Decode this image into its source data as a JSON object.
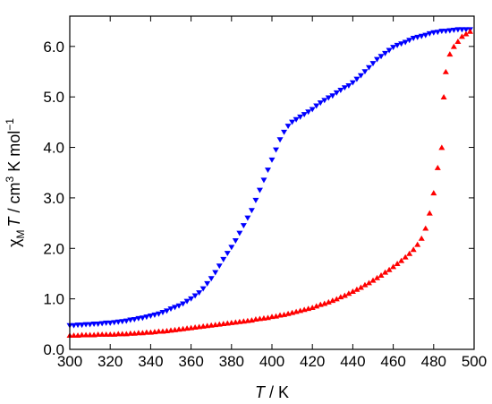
{
  "chart_data": {
    "type": "scatter",
    "xlabel": "T / K",
    "ylabel": "χM T / cm3 K mol−1",
    "xlabel_parts": {
      "var": "T",
      "unit": " / K"
    },
    "ylabel_parts": {
      "chi": "χ",
      "sub": "M",
      "var": "T",
      "unit_a": " / cm",
      "sup3": "3",
      "unit_b": " K mol",
      "sup_neg1": "−1"
    },
    "xlim": [
      300,
      500
    ],
    "ylim": [
      0,
      6.6
    ],
    "x_ticks": [
      300,
      320,
      340,
      360,
      380,
      400,
      420,
      440,
      460,
      480,
      500
    ],
    "x_tick_labels": [
      "300",
      "320",
      "340",
      "360",
      "380",
      "400",
      "420",
      "440",
      "460",
      "480",
      "500"
    ],
    "y_ticks": [
      0,
      1,
      2,
      3,
      4,
      5,
      6
    ],
    "y_tick_labels": [
      "0.0",
      "1.0",
      "2.0",
      "3.0",
      "4.0",
      "5.0",
      "6.0"
    ],
    "grid": false,
    "legend": "none",
    "series": [
      {
        "marker": "triangle-down",
        "color": "#0000ff",
        "points": [
          [
            300,
            0.47
          ],
          [
            302,
            0.47
          ],
          [
            304,
            0.48
          ],
          [
            306,
            0.48
          ],
          [
            308,
            0.49
          ],
          [
            310,
            0.49
          ],
          [
            312,
            0.5
          ],
          [
            314,
            0.5
          ],
          [
            316,
            0.51
          ],
          [
            318,
            0.52
          ],
          [
            320,
            0.52
          ],
          [
            322,
            0.53
          ],
          [
            324,
            0.54
          ],
          [
            326,
            0.55
          ],
          [
            328,
            0.56
          ],
          [
            330,
            0.58
          ],
          [
            332,
            0.59
          ],
          [
            334,
            0.61
          ],
          [
            336,
            0.62
          ],
          [
            338,
            0.64
          ],
          [
            340,
            0.66
          ],
          [
            342,
            0.68
          ],
          [
            344,
            0.7
          ],
          [
            346,
            0.73
          ],
          [
            348,
            0.76
          ],
          [
            350,
            0.8
          ],
          [
            352,
            0.83
          ],
          [
            354,
            0.86
          ],
          [
            356,
            0.9
          ],
          [
            358,
            0.95
          ],
          [
            360,
            1.0
          ],
          [
            362,
            1.06
          ],
          [
            364,
            1.12
          ],
          [
            366,
            1.2
          ],
          [
            368,
            1.3
          ],
          [
            370,
            1.4
          ],
          [
            372,
            1.52
          ],
          [
            374,
            1.65
          ],
          [
            376,
            1.78
          ],
          [
            378,
            1.9
          ],
          [
            380,
            2.02
          ],
          [
            382,
            2.15
          ],
          [
            384,
            2.3
          ],
          [
            386,
            2.45
          ],
          [
            388,
            2.6
          ],
          [
            390,
            2.75
          ],
          [
            392,
            2.95
          ],
          [
            394,
            3.15
          ],
          [
            396,
            3.35
          ],
          [
            398,
            3.55
          ],
          [
            400,
            3.75
          ],
          [
            402,
            3.95
          ],
          [
            404,
            4.15
          ],
          [
            406,
            4.3
          ],
          [
            408,
            4.42
          ],
          [
            410,
            4.5
          ],
          [
            412,
            4.55
          ],
          [
            414,
            4.6
          ],
          [
            416,
            4.65
          ],
          [
            418,
            4.7
          ],
          [
            420,
            4.75
          ],
          [
            422,
            4.82
          ],
          [
            424,
            4.88
          ],
          [
            426,
            4.93
          ],
          [
            428,
            4.98
          ],
          [
            430,
            5.02
          ],
          [
            432,
            5.08
          ],
          [
            434,
            5.13
          ],
          [
            436,
            5.18
          ],
          [
            438,
            5.22
          ],
          [
            440,
            5.28
          ],
          [
            442,
            5.35
          ],
          [
            444,
            5.42
          ],
          [
            446,
            5.5
          ],
          [
            448,
            5.58
          ],
          [
            450,
            5.66
          ],
          [
            452,
            5.74
          ],
          [
            454,
            5.8
          ],
          [
            456,
            5.86
          ],
          [
            458,
            5.92
          ],
          [
            460,
            5.98
          ],
          [
            462,
            6.02
          ],
          [
            464,
            6.05
          ],
          [
            466,
            6.08
          ],
          [
            468,
            6.12
          ],
          [
            470,
            6.16
          ],
          [
            472,
            6.18
          ],
          [
            474,
            6.2
          ],
          [
            476,
            6.22
          ],
          [
            478,
            6.25
          ],
          [
            480,
            6.27
          ],
          [
            482,
            6.28
          ],
          [
            484,
            6.3
          ],
          [
            486,
            6.3
          ],
          [
            488,
            6.31
          ],
          [
            490,
            6.32
          ],
          [
            492,
            6.33
          ],
          [
            494,
            6.33
          ],
          [
            496,
            6.33
          ],
          [
            498,
            6.33
          ]
        ]
      },
      {
        "marker": "triangle-up",
        "color": "#ff0000",
        "points": [
          [
            300,
            0.28
          ],
          [
            302,
            0.28
          ],
          [
            304,
            0.28
          ],
          [
            306,
            0.29
          ],
          [
            308,
            0.29
          ],
          [
            310,
            0.29
          ],
          [
            312,
            0.29
          ],
          [
            314,
            0.3
          ],
          [
            316,
            0.3
          ],
          [
            318,
            0.3
          ],
          [
            320,
            0.3
          ],
          [
            322,
            0.3
          ],
          [
            324,
            0.31
          ],
          [
            326,
            0.31
          ],
          [
            328,
            0.31
          ],
          [
            330,
            0.32
          ],
          [
            332,
            0.32
          ],
          [
            334,
            0.33
          ],
          [
            336,
            0.33
          ],
          [
            338,
            0.34
          ],
          [
            340,
            0.34
          ],
          [
            342,
            0.35
          ],
          [
            344,
            0.36
          ],
          [
            346,
            0.36
          ],
          [
            348,
            0.37
          ],
          [
            350,
            0.38
          ],
          [
            352,
            0.39
          ],
          [
            354,
            0.4
          ],
          [
            356,
            0.41
          ],
          [
            358,
            0.42
          ],
          [
            360,
            0.43
          ],
          [
            362,
            0.44
          ],
          [
            364,
            0.45
          ],
          [
            366,
            0.46
          ],
          [
            368,
            0.47
          ],
          [
            370,
            0.48
          ],
          [
            372,
            0.49
          ],
          [
            374,
            0.5
          ],
          [
            376,
            0.51
          ],
          [
            378,
            0.52
          ],
          [
            380,
            0.53
          ],
          [
            382,
            0.54
          ],
          [
            384,
            0.55
          ],
          [
            386,
            0.56
          ],
          [
            388,
            0.57
          ],
          [
            390,
            0.58
          ],
          [
            392,
            0.6
          ],
          [
            394,
            0.61
          ],
          [
            396,
            0.62
          ],
          [
            398,
            0.63
          ],
          [
            400,
            0.65
          ],
          [
            402,
            0.66
          ],
          [
            404,
            0.68
          ],
          [
            406,
            0.69
          ],
          [
            408,
            0.71
          ],
          [
            410,
            0.73
          ],
          [
            412,
            0.75
          ],
          [
            414,
            0.77
          ],
          [
            416,
            0.79
          ],
          [
            418,
            0.81
          ],
          [
            420,
            0.83
          ],
          [
            422,
            0.86
          ],
          [
            424,
            0.89
          ],
          [
            426,
            0.91
          ],
          [
            428,
            0.94
          ],
          [
            430,
            0.97
          ],
          [
            432,
            1.0
          ],
          [
            434,
            1.04
          ],
          [
            436,
            1.07
          ],
          [
            438,
            1.11
          ],
          [
            440,
            1.15
          ],
          [
            442,
            1.19
          ],
          [
            444,
            1.23
          ],
          [
            446,
            1.28
          ],
          [
            448,
            1.32
          ],
          [
            450,
            1.37
          ],
          [
            452,
            1.42
          ],
          [
            454,
            1.47
          ],
          [
            456,
            1.53
          ],
          [
            458,
            1.58
          ],
          [
            460,
            1.64
          ],
          [
            462,
            1.7
          ],
          [
            464,
            1.76
          ],
          [
            466,
            1.83
          ],
          [
            468,
            1.9
          ],
          [
            470,
            1.98
          ],
          [
            472,
            2.08
          ],
          [
            474,
            2.2
          ],
          [
            476,
            2.4
          ],
          [
            478,
            2.7
          ],
          [
            480,
            3.1
          ],
          [
            482,
            3.6
          ],
          [
            484,
            4.0
          ],
          [
            485,
            5.0
          ],
          [
            486,
            5.5
          ],
          [
            488,
            5.85
          ],
          [
            490,
            6.0
          ],
          [
            492,
            6.1
          ],
          [
            494,
            6.2
          ],
          [
            496,
            6.25
          ],
          [
            498,
            6.3
          ]
        ]
      }
    ]
  }
}
